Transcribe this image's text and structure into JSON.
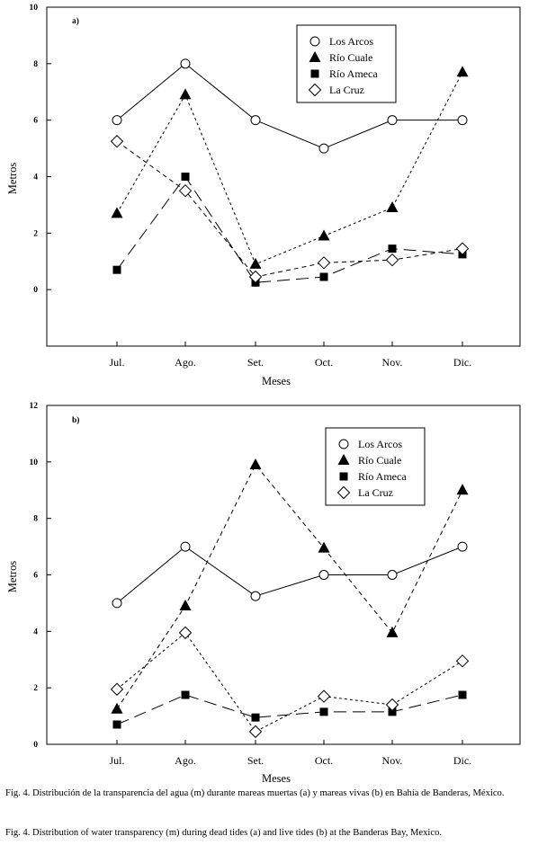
{
  "chart_data": [
    {
      "type": "line",
      "panel_label": "a)",
      "categories": [
        "Jul.",
        "Ago.",
        "Set.",
        "Oct.",
        "Nov.",
        "Dic."
      ],
      "xlabel": "Meses",
      "ylabel": "Metros",
      "ylim": [
        -2,
        10
      ],
      "yticks": [
        "0",
        "2",
        "4",
        "6",
        "8",
        "10"
      ],
      "legend_position": "top-right",
      "series": [
        {
          "name": "Los Arcos",
          "marker": "circle",
          "line": "solid",
          "values": [
            6,
            8,
            6,
            5,
            6,
            6
          ]
        },
        {
          "name": "Río Cuale",
          "marker": "triangle",
          "line": "dotted",
          "values": [
            2.7,
            6.9,
            0.9,
            1.9,
            2.9,
            7.7
          ]
        },
        {
          "name": "Río Ameca",
          "marker": "square",
          "line": "longdash",
          "values": [
            0.7,
            4.0,
            0.25,
            0.45,
            1.45,
            1.25
          ]
        },
        {
          "name": "La Cruz",
          "marker": "diamond",
          "line": "dashed",
          "values": [
            5.25,
            3.5,
            0.45,
            0.95,
            1.05,
            1.45
          ]
        }
      ]
    },
    {
      "type": "line",
      "panel_label": "b)",
      "categories": [
        "Jul.",
        "Ago.",
        "Set.",
        "Oct.",
        "Nov.",
        "Dic."
      ],
      "xlabel": "Meses",
      "ylabel": "Metros",
      "ylim": [
        0,
        12
      ],
      "yticks": [
        "0",
        "2",
        "4",
        "6",
        "8",
        "10",
        "12"
      ],
      "legend_position": "top-right",
      "series": [
        {
          "name": "Los Arcos",
          "marker": "circle",
          "line": "solid",
          "values": [
            5,
            7,
            5.25,
            6,
            6,
            7
          ]
        },
        {
          "name": "Río Cuale",
          "marker": "triangle",
          "line": "dashed",
          "values": [
            1.25,
            4.9,
            9.9,
            6.95,
            3.95,
            9.0
          ]
        },
        {
          "name": "Río Ameca",
          "marker": "square",
          "line": "longdash",
          "values": [
            0.7,
            1.75,
            0.95,
            1.15,
            1.15,
            1.75
          ]
        },
        {
          "name": "La Cruz",
          "marker": "diamond",
          "line": "dotted",
          "values": [
            1.95,
            3.95,
            0.45,
            1.7,
            1.4,
            2.95
          ]
        }
      ]
    }
  ],
  "captions": {
    "es": "Fig. 4. Distribución de la transparencia del agua (m) durante mareas muertas (a) y mareas vivas (b) en Bahía de Banderas, México.",
    "en": "Fig. 4. Distribution of water transparency (m) during dead tides (a) and live tides (b) at the Banderas Bay, Mexico."
  }
}
